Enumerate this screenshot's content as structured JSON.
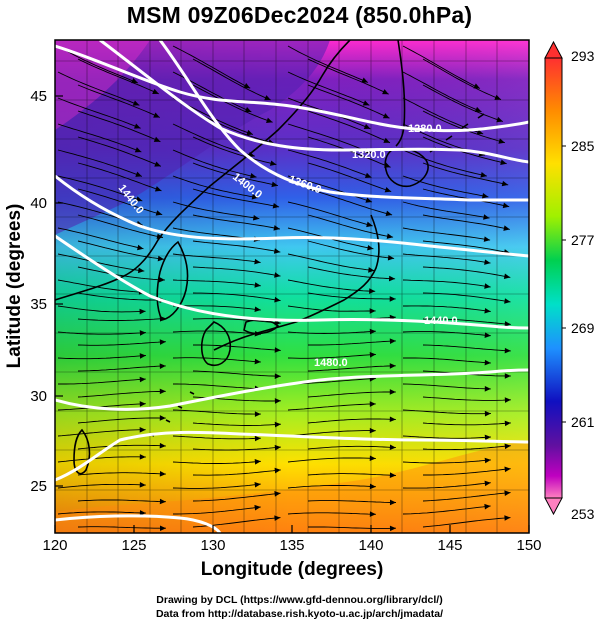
{
  "title": "MSM 09Z06Dec2024 (850.0hPa)",
  "map": {
    "lon_range": [
      120,
      150
    ],
    "lat_range": [
      22.5,
      48
    ],
    "x_ticks": [
      "120",
      "125",
      "130",
      "135",
      "140",
      "145",
      "150"
    ],
    "y_ticks": [
      "25",
      "30",
      "35",
      "40",
      "45"
    ],
    "x_title": "Longitude (degrees)",
    "y_title": "Latitude  (degrees)",
    "fill_field": "temperature",
    "vectors": "streamlines",
    "contour_color": "#ffffff"
  },
  "contour_labels": [
    "1280.0",
    "1320.0",
    "1360.0",
    "1400.0",
    "1440.0",
    "1440.0",
    "1480.0"
  ],
  "colorbar": {
    "labels": [
      "293",
      "285",
      "277",
      "269",
      "261",
      "253"
    ],
    "colors": [
      "#ff3030",
      "#ff8c00",
      "#ffe000",
      "#7cfc00",
      "#00c060",
      "#00d8d0",
      "#1e90ff",
      "#1010c0",
      "#6010a0",
      "#c000c0",
      "#ff80c0"
    ]
  },
  "credits": {
    "line1": "Drawing by DCL (https://www.gfd-dennou.org/library/dcl/)",
    "line2": "Data from http://database.rish.kyoto-u.ac.jp/arch/jmadata/"
  }
}
